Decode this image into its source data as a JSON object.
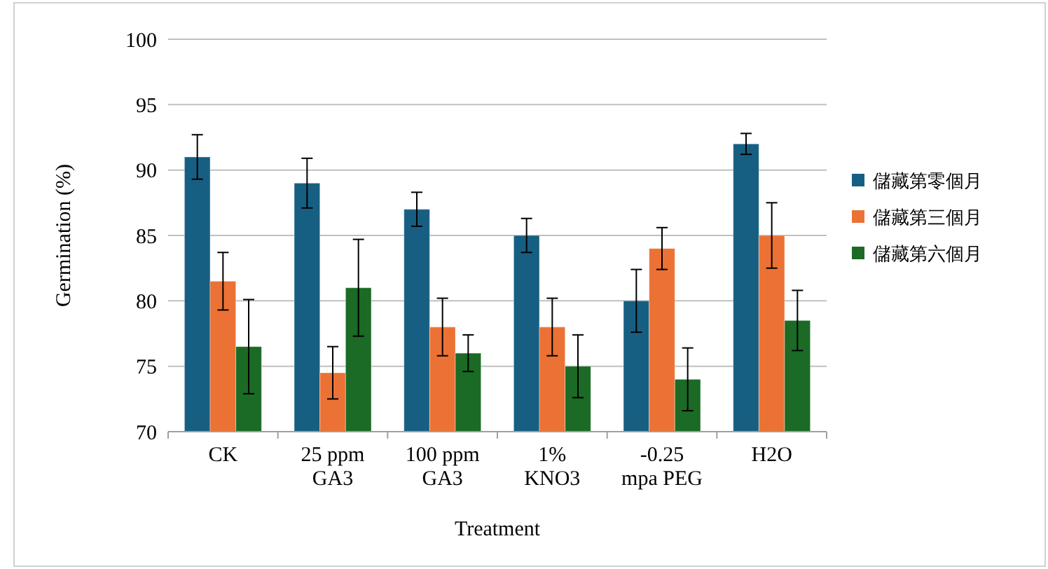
{
  "chart_data": {
    "type": "bar",
    "xlabel": "Treatment",
    "ylabel": "Germination (%)",
    "categories": [
      "CK",
      "25 ppm\nGA3",
      "100 ppm\nGA3",
      "1%\nKNO3",
      "-0.25\nmpa PEG",
      "H2O"
    ],
    "series": [
      {
        "name": "儲藏第零個月",
        "color": "#175f82",
        "values": [
          91,
          89,
          87,
          85,
          80,
          92
        ],
        "errors": [
          1.7,
          1.9,
          1.3,
          1.3,
          2.4,
          0.8
        ]
      },
      {
        "name": "儲藏第三個月",
        "color": "#eb7234",
        "values": [
          81.5,
          74.5,
          78,
          78,
          84,
          85
        ],
        "errors": [
          2.2,
          2,
          2.2,
          2.2,
          1.6,
          2.5
        ]
      },
      {
        "name": "儲藏第六個月",
        "color": "#1b6a25",
        "values": [
          76.5,
          81,
          76,
          75,
          74,
          78.5
        ],
        "errors": [
          3.6,
          3.7,
          1.4,
          2.4,
          2.4,
          2.3
        ]
      }
    ],
    "ylim": [
      70,
      100
    ],
    "yticks": [
      70,
      75,
      80,
      85,
      90,
      95,
      100
    ],
    "grid": "y",
    "legend": "right"
  }
}
